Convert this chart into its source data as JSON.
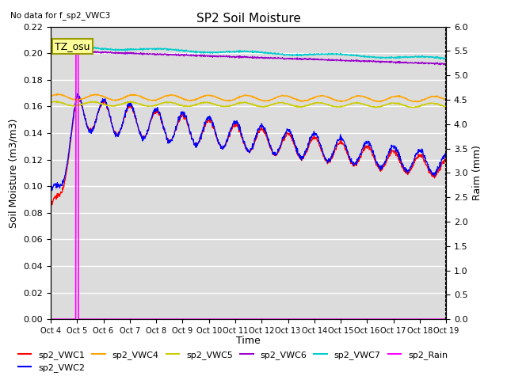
{
  "title": "SP2 Soil Moisture",
  "no_data_note": "No data for f_sp2_VWC3",
  "tz_label": "TZ_osu",
  "xlabel": "Time",
  "ylabel_left": "Soil Moisture (m3/m3)",
  "ylabel_right": "Raim (mm)",
  "ylim_left": [
    0.0,
    0.22
  ],
  "ylim_right": [
    0.0,
    6.0
  ],
  "yticks_left": [
    0.0,
    0.02,
    0.04,
    0.06,
    0.08,
    0.1,
    0.12,
    0.14,
    0.16,
    0.18,
    0.2,
    0.22
  ],
  "yticks_right": [
    0.0,
    0.5,
    1.0,
    1.5,
    2.0,
    2.5,
    3.0,
    3.5,
    4.0,
    4.5,
    5.0,
    5.5,
    6.0
  ],
  "xtick_labels": [
    "Oct 4",
    "Oct 5",
    "Oct 6",
    "Oct 7",
    "Oct 8",
    "Oct 9",
    "Oct 10",
    "Oct 11",
    "Oct 12",
    "Oct 13",
    "Oct 14",
    "Oct 15",
    "Oct 16",
    "Oct 17",
    "Oct 18",
    "Oct 19"
  ],
  "n_days": 15,
  "colors": {
    "VWC1": "#FF0000",
    "VWC2": "#0000FF",
    "VWC4": "#FFA500",
    "VWC5": "#CCCC00",
    "VWC6": "#9900CC",
    "VWC7": "#00CCCC",
    "Rain": "#FF00FF"
  },
  "bg_color": "#DCDCDC",
  "title_fontsize": 11,
  "axis_fontsize": 9,
  "tick_fontsize": 8,
  "legend_fontsize": 8
}
